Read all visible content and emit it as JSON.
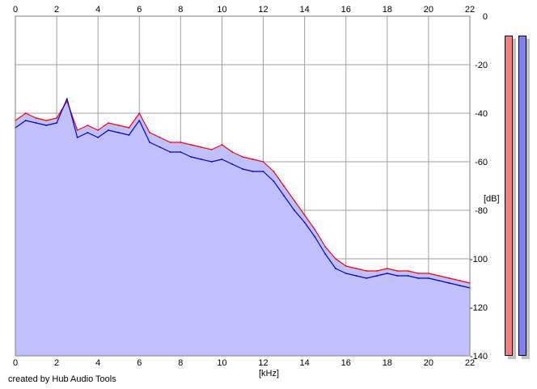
{
  "footer": {
    "credit": "created by Hub Audio Tools"
  },
  "chart_data": {
    "type": "line",
    "title": "",
    "xlabel": "[kHz]",
    "ylabel": "[dB]",
    "xlim": [
      0,
      22
    ],
    "ylim": [
      -140,
      0
    ],
    "x_ticks": [
      "0",
      "2",
      "4",
      "6",
      "8",
      "10",
      "12",
      "14",
      "16",
      "18",
      "20",
      "22"
    ],
    "y_ticks": [
      "0",
      "-20",
      "-40",
      "-60",
      "-80",
      "-100",
      "-120",
      "-140"
    ],
    "grid": true,
    "fill_color": "#c0c0ff",
    "series": [
      {
        "color": "#ff0000",
        "x": [
          0,
          0.5,
          1,
          1.5,
          2,
          2.5,
          3,
          3.5,
          4,
          4.5,
          5,
          5.5,
          6,
          6.5,
          7,
          7.5,
          8,
          8.5,
          9,
          9.5,
          10,
          10.5,
          11,
          11.5,
          12,
          12.5,
          13,
          13.5,
          14,
          14.5,
          15,
          15.5,
          16,
          16.5,
          17,
          17.5,
          18,
          18.5,
          19,
          19.5,
          20,
          20.5,
          21,
          21.5,
          22
        ],
        "values": [
          -43,
          -40,
          -42,
          -43,
          -42,
          -35,
          -47,
          -45,
          -47,
          -44,
          -45,
          -46,
          -40,
          -48,
          -50,
          -52,
          -52,
          -53,
          -54,
          -55,
          -53,
          -56,
          -58,
          -59,
          -60,
          -64,
          -70,
          -76,
          -82,
          -88,
          -95,
          -100,
          -103,
          -104,
          -105,
          -105,
          -104,
          -105,
          -105,
          -106,
          -106,
          -107,
          -108,
          -109,
          -110
        ]
      },
      {
        "color": "#0000cc",
        "x": [
          0,
          0.5,
          1,
          1.5,
          2,
          2.5,
          3,
          3.5,
          4,
          4.5,
          5,
          5.5,
          6,
          6.5,
          7,
          7.5,
          8,
          8.5,
          9,
          9.5,
          10,
          10.5,
          11,
          11.5,
          12,
          12.5,
          13,
          13.5,
          14,
          14.5,
          15,
          15.5,
          16,
          16.5,
          17,
          17.5,
          18,
          18.5,
          19,
          19.5,
          20,
          20.5,
          21,
          21.5,
          22
        ],
        "values": [
          -46,
          -43,
          -44,
          -45,
          -44,
          -34,
          -50,
          -48,
          -50,
          -47,
          -48,
          -49,
          -43,
          -52,
          -54,
          -56,
          -56,
          -58,
          -59,
          -60,
          -59,
          -61,
          -63,
          -64,
          -64,
          -68,
          -74,
          -80,
          -85,
          -91,
          -98,
          -104,
          -106,
          -107,
          -108,
          -107,
          -106,
          -107,
          -107,
          -108,
          -108,
          -109,
          -110,
          -111,
          -112
        ]
      }
    ]
  },
  "meters": [
    {
      "color": "#ef8080",
      "level_db": -8
    },
    {
      "color": "#8080ef",
      "level_db": -8
    }
  ]
}
